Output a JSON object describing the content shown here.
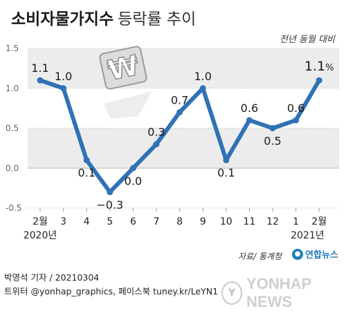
{
  "header": {
    "title_bold": "소비자물가지수",
    "title_light": "등락률 추이",
    "subtitle": "전년 동월 대비"
  },
  "colors": {
    "line": "#2f72b5",
    "band": "#ececec",
    "grid": "#cfcfcf"
  },
  "chart_data": {
    "type": "line",
    "title": "소비자물가지수 등락률 추이",
    "subtitle": "전년 동월 대비",
    "categories": [
      "2월",
      "3",
      "4",
      "5",
      "6",
      "7",
      "8",
      "9",
      "10",
      "11",
      "12",
      "1",
      "2월"
    ],
    "year_labels": [
      {
        "label": "2020년",
        "index": 0
      },
      {
        "label": "2021년",
        "index": 11.5
      }
    ],
    "series": [
      {
        "values": [
          1.1,
          1.0,
          0.1,
          -0.3,
          0.0,
          0.3,
          0.7,
          1.0,
          0.1,
          0.6,
          0.5,
          0.6,
          1.1
        ],
        "labels": [
          "1.1",
          "1.0",
          "0.1",
          "−0.3",
          "0.0",
          "0.3",
          "0.7",
          "1.0",
          "0.1",
          "0.6",
          "0.5",
          "0.6",
          "1.1"
        ],
        "last_suffix": "%"
      }
    ],
    "ylim": [
      -0.5,
      1.5
    ],
    "yticks": [
      "1.5",
      "1.0",
      "0.5",
      "0.0",
      "-0.5"
    ],
    "ytick_values": [
      1.5,
      1.0,
      0.5,
      0.0,
      -0.5
    ],
    "grid": true
  },
  "footer": {
    "byline": "박영석 기자 / 20210304",
    "sns": "트위터 @yonhap_graphics, 페이스북 tuney.kr/LeYN1",
    "source": "자료/ 통계청",
    "brand": "연합뉴스",
    "watermark": "YONHAP NEWS",
    "watermark_mark": "Y"
  }
}
